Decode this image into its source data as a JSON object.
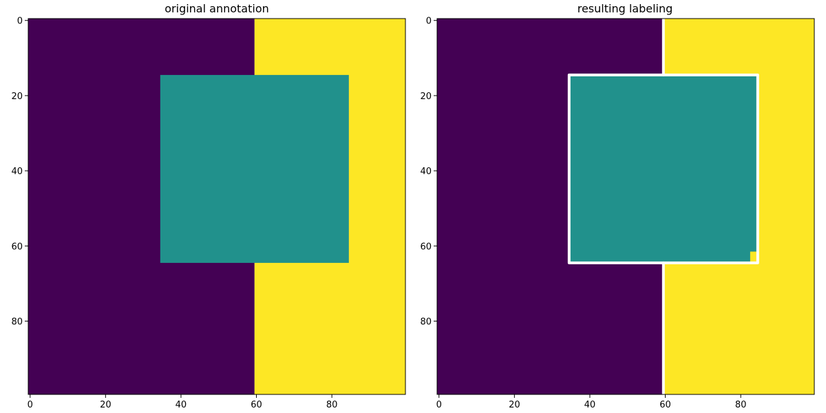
{
  "chart_data": [
    {
      "type": "heatmap",
      "title": "original annotation",
      "xlabel": "",
      "ylabel": "",
      "xlim": [
        -0.5,
        99.5
      ],
      "ylim": [
        99.5,
        -0.5
      ],
      "xticks": [
        0,
        20,
        40,
        60,
        80
      ],
      "yticks": [
        0,
        20,
        40,
        60,
        80
      ],
      "grid": false,
      "colormap": "viridis",
      "colors": {
        "background": "#440154",
        "square": "#21918c",
        "right_half": "#fde725"
      },
      "regions": [
        {
          "label": 0,
          "rows": [
            0,
            99
          ],
          "cols": [
            0,
            59
          ],
          "color": "#440154"
        },
        {
          "label": 2,
          "rows": [
            0,
            99
          ],
          "cols": [
            60,
            99
          ],
          "color": "#fde725"
        },
        {
          "label": 1,
          "rows": [
            15,
            64
          ],
          "cols": [
            35,
            84
          ],
          "color": "#21918c"
        }
      ],
      "boundaries": []
    },
    {
      "type": "heatmap",
      "title": "resulting labeling",
      "xlabel": "",
      "ylabel": "",
      "xlim": [
        -0.5,
        99.5
      ],
      "ylim": [
        99.5,
        -0.5
      ],
      "xticks": [
        0,
        20,
        40,
        60,
        80
      ],
      "yticks": [
        0,
        20,
        40,
        60,
        80
      ],
      "grid": false,
      "colormap": "viridis",
      "colors": {
        "background": "#440154",
        "square": "#21918c",
        "right_half": "#fde725",
        "boundary": "#ffffff"
      },
      "regions": [
        {
          "label": 0,
          "rows": [
            0,
            99
          ],
          "cols": [
            0,
            59
          ],
          "color": "#440154"
        },
        {
          "label": 2,
          "rows": [
            0,
            99
          ],
          "cols": [
            60,
            99
          ],
          "color": "#fde725"
        },
        {
          "label": 1,
          "rows": [
            15,
            64
          ],
          "cols": [
            35,
            84
          ],
          "color": "#21918c"
        },
        {
          "label": 2,
          "rows": [
            62,
            64
          ],
          "cols": [
            83,
            84
          ],
          "color": "#fde725"
        }
      ],
      "boundaries": [
        {
          "name": "vertical-boundary-top",
          "points": [
            [
              59.5,
              -0.5
            ],
            [
              59.5,
              14.5
            ]
          ]
        },
        {
          "name": "square-boundary",
          "points": [
            [
              34.5,
              14.5
            ],
            [
              84.5,
              14.5
            ],
            [
              84.5,
              64.5
            ],
            [
              34.5,
              64.5
            ],
            [
              34.5,
              14.5
            ]
          ]
        },
        {
          "name": "vertical-boundary-bottom",
          "points": [
            [
              59.5,
              64.5
            ],
            [
              59.5,
              99.5
            ]
          ]
        }
      ]
    }
  ]
}
